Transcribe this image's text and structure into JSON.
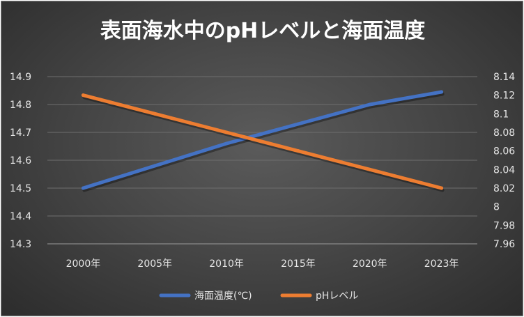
{
  "chart_data": {
    "type": "line",
    "title": "表面海水中のpHレベルと海面温度",
    "categories": [
      "2000年",
      "2005年",
      "2010年",
      "2015年",
      "2020年",
      "2023年"
    ],
    "series": [
      {
        "name": "海面温度(℃)",
        "axis": "left",
        "color": "#4472c4",
        "values": [
          14.5,
          14.58,
          14.66,
          14.73,
          14.8,
          14.845
        ]
      },
      {
        "name": "pHレベル",
        "axis": "right",
        "color": "#ed7d31",
        "values": [
          8.12,
          8.1,
          8.08,
          8.06,
          8.04,
          8.02
        ]
      }
    ],
    "y_left": {
      "min": 14.3,
      "max": 14.9,
      "ticks": [
        "14.3",
        "14.4",
        "14.5",
        "14.6",
        "14.7",
        "14.8",
        "14.9"
      ]
    },
    "y_right": {
      "min": 7.96,
      "max": 8.14,
      "ticks": [
        "7.96",
        "7.98",
        "8",
        "8.02",
        "8.04",
        "8.06",
        "8.08",
        "8.1",
        "8.12",
        "8.14"
      ]
    },
    "grid": true,
    "legend_position": "bottom",
    "colors": {
      "background": "#474747",
      "grid": "#6e6e6e",
      "text": "#e6e6e6"
    }
  }
}
